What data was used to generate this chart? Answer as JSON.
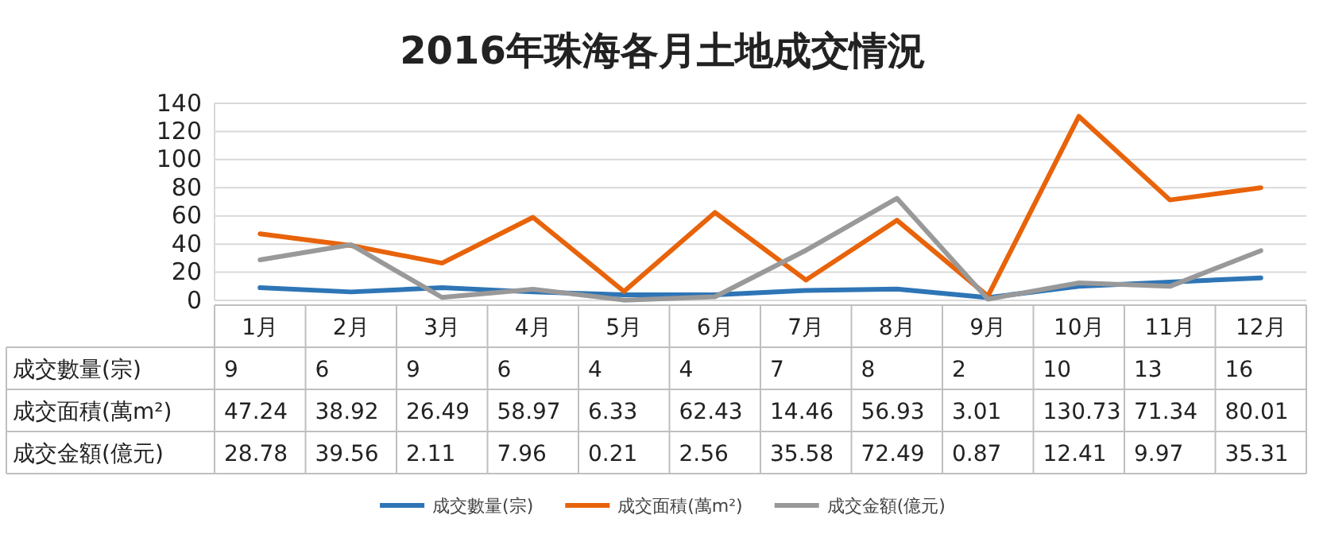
{
  "chart_data": {
    "type": "line",
    "title": "2016年珠海各月土地成交情況",
    "categories": [
      "1月",
      "2月",
      "3月",
      "4月",
      "5月",
      "6月",
      "7月",
      "8月",
      "9月",
      "10月",
      "11月",
      "12月"
    ],
    "series": [
      {
        "name": "成交數量(宗)",
        "color": "#2e75b6",
        "values": [
          9,
          6,
          9,
          6,
          4,
          4,
          7,
          8,
          2,
          10,
          13,
          16
        ]
      },
      {
        "name": "成交面積(萬m²)",
        "color": "#e8630a",
        "values": [
          47.24,
          38.92,
          26.49,
          58.97,
          6.33,
          62.43,
          14.46,
          56.93,
          3.01,
          130.73,
          71.34,
          80.01
        ]
      },
      {
        "name": "成交金額(億元)",
        "color": "#999999",
        "values": [
          28.78,
          39.56,
          2.11,
          7.96,
          0.21,
          2.56,
          35.58,
          72.49,
          0.87,
          12.41,
          9.97,
          35.31
        ]
      }
    ],
    "ylim": [
      0,
      140
    ],
    "yticks": [
      0,
      20,
      40,
      60,
      80,
      100,
      120,
      140
    ],
    "grid": "y",
    "legend": "bottom",
    "data_labels": true,
    "line_style": "solid",
    "marker": "none"
  }
}
